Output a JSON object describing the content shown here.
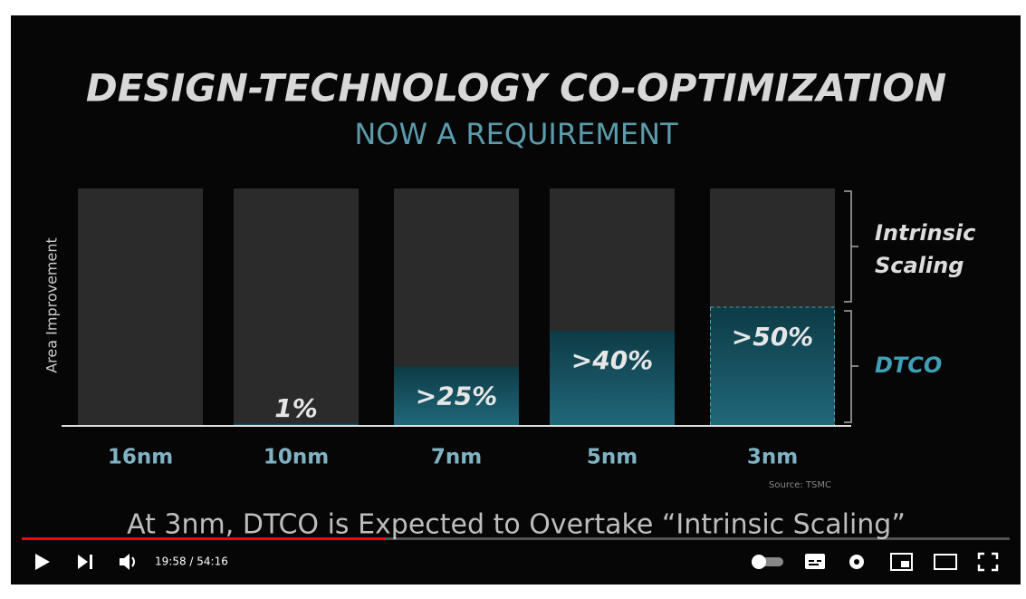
{
  "chart_data": {
    "type": "bar",
    "title": "DESIGN-TECHNOLOGY CO-OPTIMIZATION",
    "subtitle": "NOW A REQUIREMENT",
    "y_label": "Area Improvement",
    "categories": [
      "16nm",
      "10nm",
      "7nm",
      "5nm",
      "3nm"
    ],
    "values": [
      null,
      1,
      25,
      40,
      50
    ],
    "value_labels": [
      null,
      "1%",
      ">25%",
      ">40%",
      ">50%"
    ],
    "ylim": [
      0,
      100
    ],
    "color": "#1a5f6e",
    "bracket_labels": [
      "Intrinsic Scaling",
      "DTCO"
    ],
    "source": "Source: TSMC"
  },
  "caption": "At 3nm, DTCO is Expected to Overtake “Intrinsic Scaling”",
  "player": {
    "time": "19:58 / 54:16"
  }
}
